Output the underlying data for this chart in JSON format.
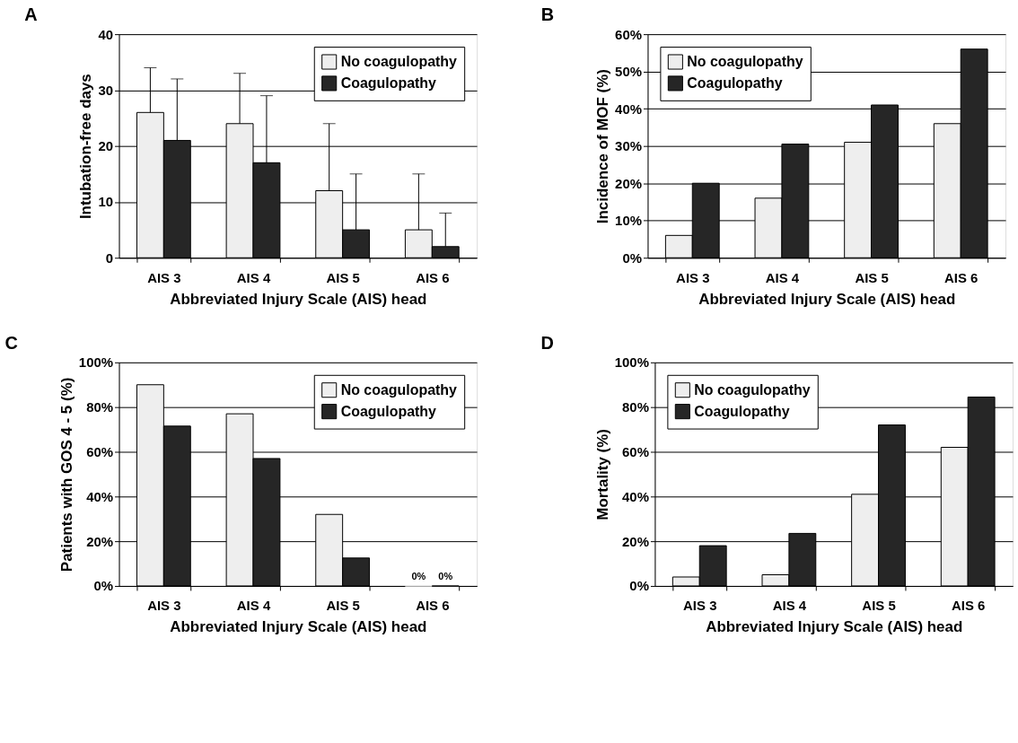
{
  "chart_data": [
    {
      "type": "bar",
      "title": "A",
      "xlabel": "Abbreviated Injury Scale (AIS) head",
      "ylabel": "Intubation-free days",
      "categories": [
        "AIS 3",
        "AIS 4",
        "AIS 5",
        "AIS 6"
      ],
      "ylim": [
        0,
        40
      ],
      "yticks": [
        0,
        10,
        20,
        30,
        40
      ],
      "grid": "y",
      "legend": "top right",
      "series": [
        {
          "name": "No coagulopathy",
          "color": "#eeeeee",
          "values": [
            26,
            24,
            12,
            5
          ],
          "errors": [
            [
              26,
              34
            ],
            [
              24,
              33
            ],
            [
              12,
              24
            ],
            [
              5,
              15
            ]
          ]
        },
        {
          "name": "Coagulopathy",
          "color": "#262626",
          "values": [
            21,
            17,
            5,
            2
          ],
          "errors": [
            [
              21,
              32
            ],
            [
              17,
              29
            ],
            [
              5,
              15
            ],
            [
              2,
              8
            ]
          ]
        }
      ]
    },
    {
      "type": "bar",
      "title": "B",
      "xlabel": "Abbreviated Injury Scale (AIS) head",
      "ylabel": "Incidence of MOF (%)",
      "categories": [
        "AIS 3",
        "AIS 4",
        "AIS 5",
        "AIS 6"
      ],
      "ylim": [
        0,
        60
      ],
      "yticks": [
        {
          "value": 0,
          "label": "0%"
        },
        {
          "value": 10,
          "label": "10%"
        },
        {
          "value": 20,
          "label": "20%"
        },
        {
          "value": 30,
          "label": "30%"
        },
        {
          "value": 40,
          "label": "40%"
        },
        {
          "value": 50,
          "label": "50%"
        },
        {
          "value": 60,
          "label": "60%"
        }
      ],
      "grid": "y",
      "legend": "top left",
      "series": [
        {
          "name": "No coagulopathy",
          "color": "#eeeeee",
          "values": [
            6,
            16,
            31,
            36
          ]
        },
        {
          "name": "Coagulopathy",
          "color": "#262626",
          "values": [
            20,
            30.5,
            41,
            56
          ]
        }
      ]
    },
    {
      "type": "bar",
      "title": "C",
      "xlabel": "Abbreviated Injury Scale (AIS) head",
      "ylabel": "Patients with GOS 4 - 5 (%)",
      "categories": [
        "AIS 3",
        "AIS 4",
        "AIS 5",
        "AIS 6"
      ],
      "ylim": [
        0,
        100
      ],
      "yticks": [
        {
          "value": 0,
          "label": "0%"
        },
        {
          "value": 20,
          "label": "20%"
        },
        {
          "value": 40,
          "label": "40%"
        },
        {
          "value": 60,
          "label": "60%"
        },
        {
          "value": 80,
          "label": "80%"
        },
        {
          "value": 100,
          "label": "100%"
        }
      ],
      "grid": "y",
      "legend": "top right",
      "series": [
        {
          "name": "No coagulopathy",
          "color": "#eeeeee",
          "values": [
            90,
            77,
            32,
            0
          ],
          "value_labels": [
            null,
            null,
            null,
            "0%"
          ]
        },
        {
          "name": "Coagulopathy",
          "color": "#262626",
          "values": [
            71.5,
            57,
            12.5,
            0
          ],
          "value_labels": [
            null,
            null,
            null,
            "0%"
          ]
        }
      ]
    },
    {
      "type": "bar",
      "title": "D",
      "xlabel": "Abbreviated Injury Scale (AIS) head",
      "ylabel": "Mortality (%)",
      "categories": [
        "AIS 3",
        "AIS 4",
        "AIS 5",
        "AIS 6"
      ],
      "ylim": [
        0,
        100
      ],
      "yticks": [
        {
          "value": 0,
          "label": "0%"
        },
        {
          "value": 20,
          "label": "20%"
        },
        {
          "value": 40,
          "label": "40%"
        },
        {
          "value": 60,
          "label": "60%"
        },
        {
          "value": 80,
          "label": "80%"
        },
        {
          "value": 100,
          "label": "100%"
        }
      ],
      "grid": "y",
      "legend": "top left",
      "series": [
        {
          "name": "No coagulopathy",
          "color": "#eeeeee",
          "values": [
            4,
            5,
            41,
            62
          ]
        },
        {
          "name": "Coagulopathy",
          "color": "#262626",
          "values": [
            18,
            23.5,
            72,
            84.5
          ]
        }
      ]
    }
  ]
}
